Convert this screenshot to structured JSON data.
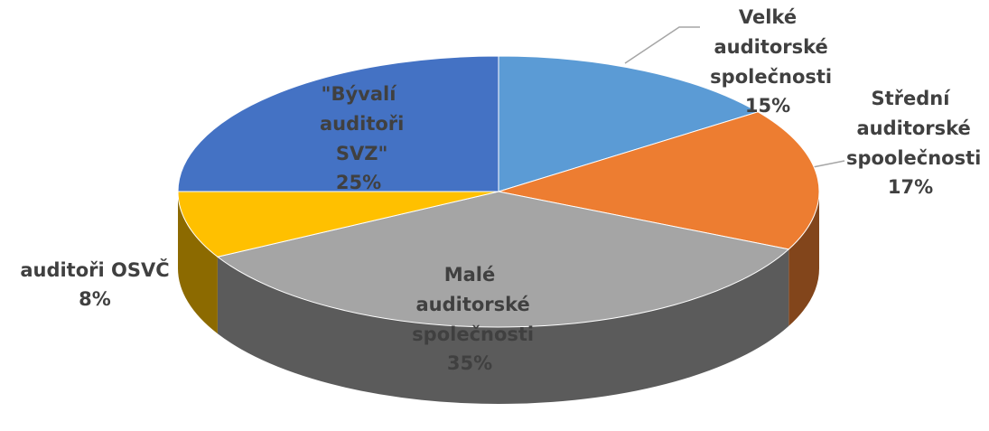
{
  "chart_data": {
    "type": "pie",
    "categories": [
      "Velké auditorské společnosti",
      "Střední auditorské spoolečnosti",
      "Malé auditorské společnosti",
      "auditoři OSVČ",
      "\"Bývalí auditoři SVZ\""
    ],
    "values": [
      15,
      17,
      35,
      8,
      25
    ],
    "value_labels": [
      "15%",
      "17%",
      "35%",
      "8%",
      "25%"
    ],
    "colors": [
      "#5b9bd5",
      "#ed7d31",
      "#a5a5a5",
      "#ffc000",
      "#4472c4"
    ]
  }
}
